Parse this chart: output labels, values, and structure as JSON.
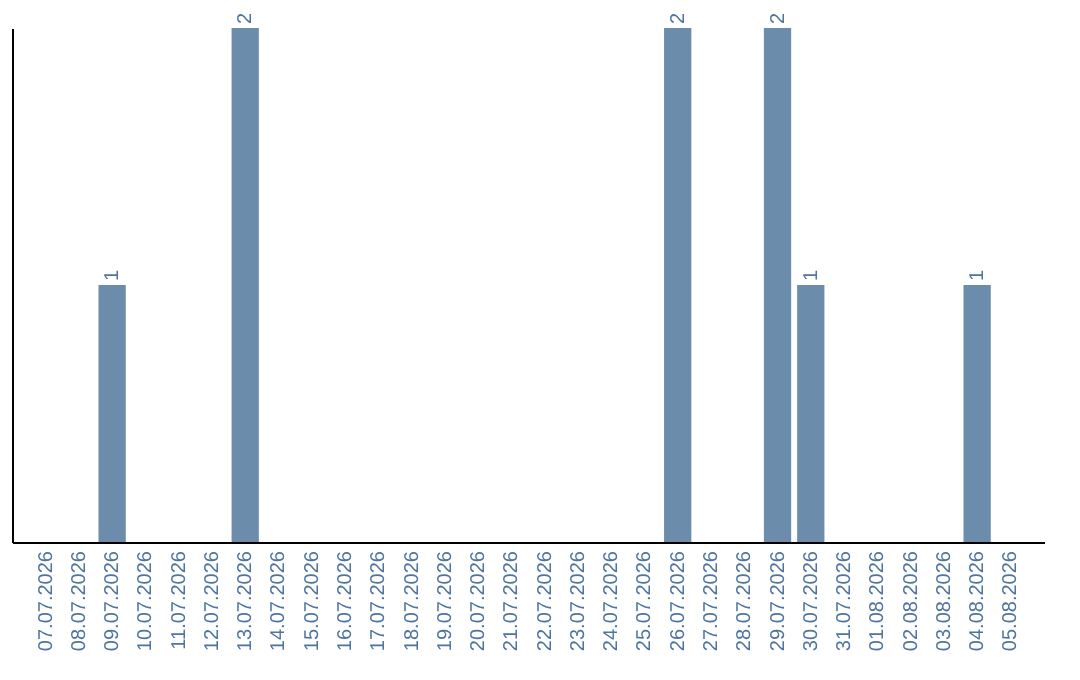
{
  "chart_data": {
    "type": "bar",
    "categories": [
      "07.07.2026",
      "08.07.2026",
      "09.07.2026",
      "10.07.2026",
      "11.07.2026",
      "12.07.2026",
      "13.07.2026",
      "14.07.2026",
      "15.07.2026",
      "16.07.2026",
      "17.07.2026",
      "18.07.2026",
      "19.07.2026",
      "20.07.2026",
      "21.07.2026",
      "22.07.2026",
      "23.07.2026",
      "24.07.2026",
      "25.07.2026",
      "26.07.2026",
      "27.07.2026",
      "28.07.2026",
      "29.07.2026",
      "30.07.2026",
      "31.07.2026",
      "01.08.2026",
      "02.08.2026",
      "03.08.2026",
      "04.08.2026",
      "05.08.2026"
    ],
    "values": [
      0,
      0,
      1,
      0,
      0,
      0,
      2,
      0,
      0,
      0,
      0,
      0,
      0,
      0,
      0,
      0,
      0,
      0,
      0,
      2,
      0,
      0,
      2,
      1,
      0,
      0,
      0,
      0,
      1,
      0
    ],
    "color": "#6b8cab",
    "value_labels": [
      null,
      null,
      "1",
      null,
      null,
      null,
      "2",
      null,
      null,
      null,
      null,
      null,
      null,
      null,
      null,
      null,
      null,
      null,
      null,
      "2",
      null,
      null,
      "2",
      "1",
      null,
      null,
      null,
      null,
      "1",
      null
    ],
    "tick_labels": "x"
  }
}
